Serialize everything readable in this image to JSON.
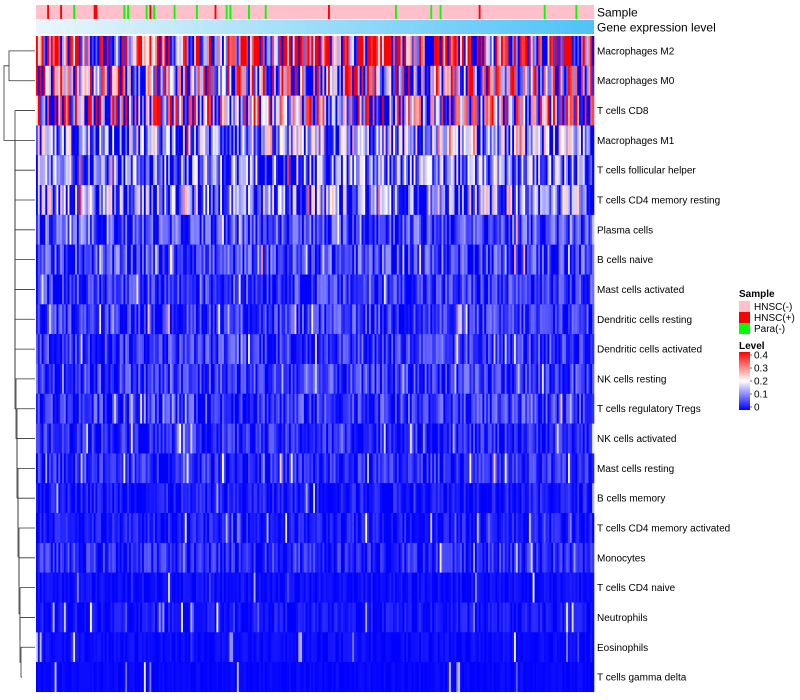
{
  "chart_data": {
    "type": "heatmap",
    "title": "",
    "xlabel": "",
    "ylabel": "",
    "annotation_tracks": [
      {
        "name": "Sample"
      },
      {
        "name": "Gene expression level"
      }
    ],
    "rows": [
      {
        "label": "Macrophages M2",
        "mean_level": 0.24
      },
      {
        "label": "Macrophages M0",
        "mean_level": 0.18
      },
      {
        "label": "T cells CD8",
        "mean_level": 0.16
      },
      {
        "label": "Macrophages M1",
        "mean_level": 0.1
      },
      {
        "label": "T cells follicular helper",
        "mean_level": 0.09
      },
      {
        "label": "T cells CD4 memory resting",
        "mean_level": 0.1
      },
      {
        "label": "Plasma cells",
        "mean_level": 0.05
      },
      {
        "label": "B cells naive",
        "mean_level": 0.05
      },
      {
        "label": "Mast cells activated",
        "mean_level": 0.04
      },
      {
        "label": "Dendritic cells resting",
        "mean_level": 0.04
      },
      {
        "label": "Dendritic cells activated",
        "mean_level": 0.04
      },
      {
        "label": "NK cells resting",
        "mean_level": 0.04
      },
      {
        "label": "T cells regulatory  Tregs",
        "mean_level": 0.04
      },
      {
        "label": "NK cells activated",
        "mean_level": 0.03
      },
      {
        "label": "Mast cells resting",
        "mean_level": 0.03
      },
      {
        "label": "B cells memory",
        "mean_level": 0.02
      },
      {
        "label": "T cells CD4 memory activated",
        "mean_level": 0.02
      },
      {
        "label": "Monocytes",
        "mean_level": 0.03
      },
      {
        "label": "T cells CD4 naive",
        "mean_level": 0.01
      },
      {
        "label": "Neutrophils",
        "mean_level": 0.015
      },
      {
        "label": "Eosinophils",
        "mean_level": 0.008
      },
      {
        "label": "T cells gamma delta",
        "mean_level": 0.005
      }
    ],
    "legend": {
      "sample": {
        "title": "Sample",
        "entries": [
          {
            "label": "HNSC(-)",
            "color": "#FFC0CB"
          },
          {
            "label": "HNSC(+)",
            "color": "#FF0000"
          },
          {
            "label": "Para(-)",
            "color": "#00FF00"
          }
        ]
      },
      "level": {
        "title": "Level",
        "ticks": [
          "0.4",
          "0.3",
          "0.2",
          "0.1",
          "0"
        ],
        "range": [
          0,
          0.4
        ],
        "colors": [
          "#0000FF",
          "#FFFFFF",
          "#FF0000"
        ]
      }
    },
    "gene_expression_color": "#4FC3F7"
  }
}
